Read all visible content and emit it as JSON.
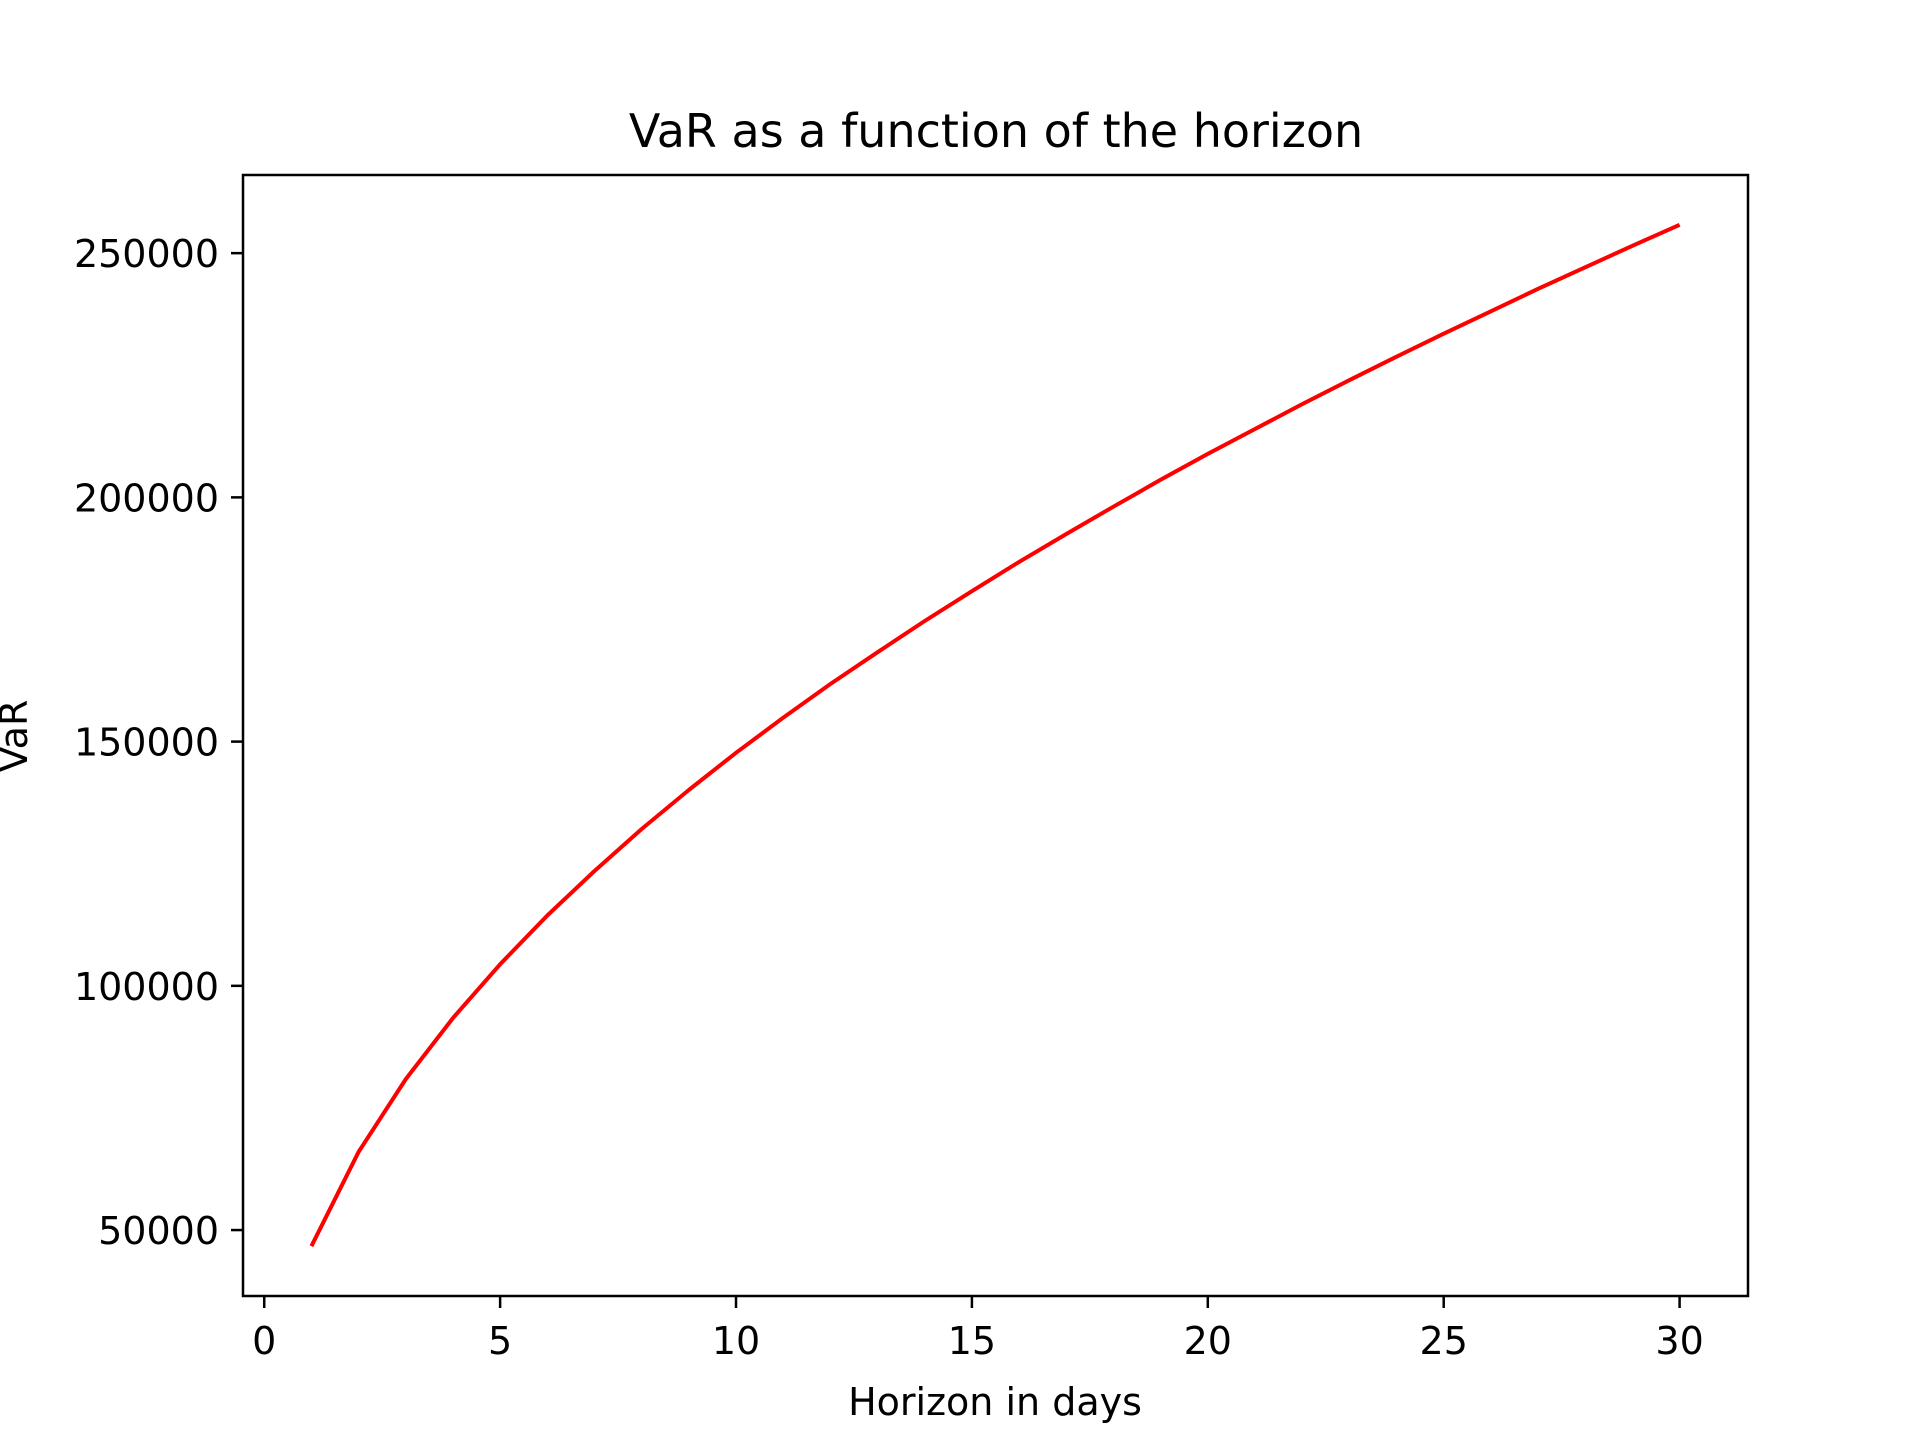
{
  "chart_data": {
    "type": "line",
    "title": "VaR as a function of the horizon",
    "xlabel": "Horizon in days",
    "ylabel": "VaR",
    "xlim": [
      -0.45,
      31.45
    ],
    "ylim": [
      36500,
      266000
    ],
    "xticks": [
      0,
      5,
      10,
      15,
      20,
      25,
      30
    ],
    "yticks": [
      50000,
      100000,
      150000,
      200000,
      250000
    ],
    "grid": false,
    "series": [
      {
        "color": "#ff0000",
        "x": [
          1,
          2,
          3,
          4,
          5,
          6,
          7,
          8,
          9,
          10,
          11,
          12,
          13,
          14,
          15,
          16,
          17,
          18,
          19,
          20,
          21,
          22,
          23,
          24,
          25,
          26,
          27,
          28,
          29,
          30
        ],
        "y": [
          46700,
          66000,
          80900,
          93400,
          104400,
          114400,
          123500,
          132100,
          140100,
          147700,
          154900,
          161800,
          168300,
          174700,
          180800,
          186800,
          192500,
          198100,
          203600,
          208900,
          214000,
          219100,
          224000,
          228800,
          233500,
          238100,
          242700,
          247100,
          251500,
          255800
        ]
      }
    ]
  }
}
